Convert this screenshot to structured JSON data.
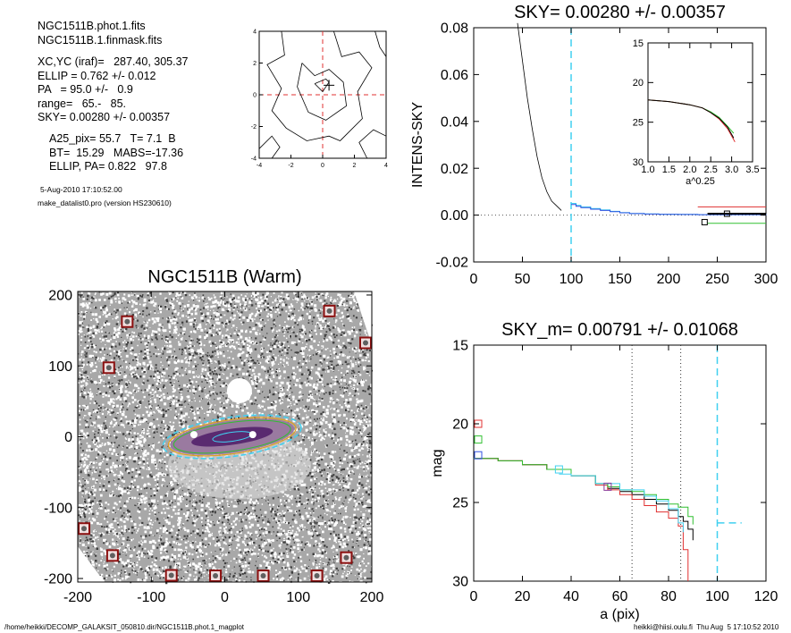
{
  "header": {
    "file1": "NGC1511B.phot.1.fits",
    "file2": "NGC1511B.1.finmask.fits",
    "xcyc": "XC,YC (iraf)=   287.40, 305.37",
    "ellip": "ELLIP = 0.762 +/- 0.012",
    "pa": "PA   = 95.0 +/-   0.9",
    "range": "range=   65.-   85.",
    "sky": "SKY= 0.00280 +/- 0.00357",
    "a25": "A25_pix= 55.7   T= 7.1  B",
    "bt": "BT=  15.29   MABS=-17.36",
    "ellip_pa": "ELLIP, PA= 0.822   97.8",
    "date": "5-Aug-2010 17:10:52.00",
    "prog": "make_datalist0.pro (version HS230610)"
  },
  "footer": {
    "path": "/home/heikki/DECOMP_GALAKSIT_050810.dir/NGC1511B.phot.1_magplot",
    "user": "heikki@hiisi.oulu.fi  Thu Aug  5 17:10:52 2010"
  },
  "colors": {
    "cyan": "#40d0f0",
    "red": "#e03030",
    "green": "#30c030",
    "blue": "#3050e0",
    "orange": "#e0a020",
    "darkred": "#8b1010"
  },
  "chart_data": [
    {
      "id": "contour",
      "type": "line",
      "title": "",
      "xlim": [
        -4,
        4
      ],
      "ylim": [
        -4,
        4
      ],
      "xticks": [
        -4,
        -2,
        0,
        2,
        4
      ],
      "yticks": [
        -4,
        -2,
        0,
        2,
        4
      ],
      "series": [
        {
          "points": [
            [
              -2.6,
              4
            ],
            [
              -2.4,
              2.5
            ],
            [
              -3.5,
              1.9
            ],
            [
              -2.6,
              0.4
            ],
            [
              -3.2,
              -1
            ],
            [
              -2.3,
              -2.1
            ],
            [
              -1,
              -2.9
            ],
            [
              0.4,
              -2.6
            ],
            [
              1.1,
              -2.9
            ],
            [
              2.5,
              -1.5
            ],
            [
              2.2,
              0.2
            ],
            [
              3.1,
              1.7
            ],
            [
              2.3,
              2.7
            ],
            [
              1.2,
              2.4
            ],
            [
              0.7,
              4
            ]
          ]
        },
        {
          "points": [
            [
              -1.3,
              2
            ],
            [
              -1.6,
              0.5
            ],
            [
              -0.9,
              -1.1
            ],
            [
              0.2,
              -1.6
            ],
            [
              1.5,
              -0.7
            ],
            [
              1.3,
              0.8
            ],
            [
              0.4,
              1.6
            ],
            [
              -0.5,
              1.2
            ],
            [
              -1.3,
              2
            ]
          ]
        },
        {
          "points": [
            [
              -0.5,
              0.7
            ],
            [
              0,
              0.2
            ],
            [
              0.4,
              0.8
            ],
            [
              0.2,
              1
            ],
            [
              -0.5,
              0.7
            ]
          ]
        },
        {
          "points": [
            [
              2.8,
              -4
            ],
            [
              2.3,
              -3
            ],
            [
              3.2,
              -2.2
            ],
            [
              4,
              -2.6
            ]
          ]
        },
        {
          "points": [
            [
              -4,
              -3.4
            ],
            [
              -3.2,
              -2.6
            ],
            [
              -2.7,
              -3.3
            ],
            [
              -3.2,
              -4
            ]
          ]
        },
        {
          "points": [
            [
              3.3,
              4
            ],
            [
              3.6,
              3
            ],
            [
              4,
              2.4
            ]
          ]
        }
      ]
    },
    {
      "id": "sky",
      "type": "line",
      "title": "SKY= 0.00280 +/- 0.00357",
      "xlabel": "",
      "ylabel": "INTENS-SKY",
      "xlim": [
        0,
        300
      ],
      "ylim": [
        -0.02,
        0.08
      ],
      "xticks": [
        0,
        50,
        100,
        150,
        200,
        250,
        300
      ],
      "yticks": [
        "-0.02",
        "0.00",
        "0.02",
        "0.04",
        "0.06",
        "0.08"
      ],
      "vline": 100,
      "profile": [
        [
          45,
          0.082
        ],
        [
          50,
          0.066
        ],
        [
          55,
          0.05
        ],
        [
          60,
          0.037
        ],
        [
          65,
          0.025
        ],
        [
          70,
          0.016
        ],
        [
          75,
          0.01
        ],
        [
          80,
          0.006
        ],
        [
          85,
          0.004
        ],
        [
          90,
          0.002
        ]
      ],
      "step": [
        [
          100,
          0.005
        ],
        [
          105,
          0.0042
        ],
        [
          110,
          0.0035
        ],
        [
          120,
          0.0028
        ],
        [
          130,
          0.0022
        ],
        [
          140,
          0.0016
        ],
        [
          150,
          0.0011
        ],
        [
          160,
          0.0007
        ],
        [
          175,
          0.0005
        ],
        [
          190,
          0.0004
        ],
        [
          210,
          0.0003
        ],
        [
          230,
          0.0002
        ],
        [
          300,
          0
        ]
      ],
      "lines": {
        "red": 0.0035,
        "black": 0.0006,
        "green": -0.0035
      },
      "markers": [
        [
          260,
          0.0006
        ],
        [
          237,
          -0.003
        ]
      ]
    },
    {
      "id": "inset",
      "type": "line",
      "title": "",
      "xlabel": "a^0.25",
      "ylabel": "",
      "xlim": [
        1.0,
        3.5
      ],
      "ylim": [
        30,
        15
      ],
      "xticks": [
        "1.0",
        "1.5",
        "2.0",
        "2.5",
        "3.0",
        "3.5"
      ],
      "yticks": [
        "15",
        "20",
        "25",
        "30"
      ],
      "series": [
        {
          "name": "",
          "color": "green",
          "points": [
            [
              1.0,
              22.2
            ],
            [
              1.5,
              22.4
            ],
            [
              2.0,
              22.8
            ],
            [
              2.3,
              23.2
            ],
            [
              2.5,
              23.7
            ],
            [
              2.7,
              24.4
            ],
            [
              2.9,
              25.5
            ],
            [
              3.05,
              26.4
            ]
          ]
        },
        {
          "name": "",
          "color": "red",
          "points": [
            [
              1.0,
              22.2
            ],
            [
              1.5,
              22.4
            ],
            [
              2.0,
              22.8
            ],
            [
              2.3,
              23.2
            ],
            [
              2.5,
              23.8
            ],
            [
              2.7,
              24.6
            ],
            [
              2.9,
              25.8
            ],
            [
              3.08,
              27.5
            ]
          ]
        },
        {
          "name": "",
          "color": "black",
          "points": [
            [
              1.0,
              22.2
            ],
            [
              1.5,
              22.4
            ],
            [
              2.0,
              22.8
            ],
            [
              2.3,
              23.2
            ],
            [
              2.5,
              23.8
            ],
            [
              2.7,
              24.5
            ],
            [
              2.9,
              25.6
            ],
            [
              3.05,
              27.0
            ]
          ]
        }
      ]
    },
    {
      "id": "image",
      "type": "scatter",
      "title": "NGC1511B (Warm)",
      "xlim": [
        -200,
        200
      ],
      "ylim": [
        -205,
        205
      ],
      "xticks": [
        -200,
        -100,
        0,
        100,
        200
      ],
      "yticks": [
        -200,
        -100,
        0,
        100,
        200
      ],
      "masks": [
        [
          -140,
          170
        ],
        [
          -165,
          105
        ],
        [
          135,
          185
        ],
        [
          198,
          140
        ],
        [
          -200,
          -122
        ],
        [
          -160,
          -160
        ],
        [
          -80,
          -188
        ],
        [
          -20,
          -200
        ],
        [
          45,
          -202
        ],
        [
          118,
          -190
        ],
        [
          158,
          -163
        ]
      ]
    },
    {
      "id": "mag",
      "type": "line",
      "title": "SKY_m=  0.00791 +/- 0.01068",
      "xlabel": "a (pix)",
      "ylabel": "mag",
      "xlim": [
        0,
        120
      ],
      "ylim": [
        30,
        15
      ],
      "xticks": [
        0,
        20,
        40,
        60,
        80,
        100,
        120
      ],
      "yticks": [
        15,
        20,
        25,
        30
      ],
      "vlines_dotted": [
        65,
        85
      ],
      "vline_dashed": 100,
      "hline_dashed": {
        "y": 26.3,
        "x0": 100,
        "x1": 110
      },
      "series": [
        {
          "name": "",
          "color": "black",
          "points": [
            [
              0,
              22.2
            ],
            [
              10,
              22.35
            ],
            [
              20,
              22.6
            ],
            [
              30,
              22.9
            ],
            [
              40,
              23.3
            ],
            [
              50,
              23.8
            ],
            [
              55,
              24.1
            ],
            [
              60,
              24.3
            ],
            [
              65,
              24.5
            ],
            [
              70,
              24.8
            ],
            [
              75,
              25.1
            ],
            [
              80,
              25.5
            ],
            [
              84,
              25.9
            ],
            [
              86,
              26.2
            ],
            [
              88,
              26.7
            ],
            [
              90,
              27.4
            ]
          ]
        },
        {
          "name": "",
          "color": "red",
          "points": [
            [
              0,
              22.2
            ],
            [
              10,
              22.35
            ],
            [
              20,
              22.6
            ],
            [
              30,
              22.9
            ],
            [
              40,
              23.3
            ],
            [
              50,
              23.9
            ],
            [
              55,
              24.2
            ],
            [
              60,
              24.5
            ],
            [
              65,
              24.8
            ],
            [
              70,
              25.2
            ],
            [
              75,
              25.6
            ],
            [
              80,
              26.0
            ],
            [
              84,
              26.5
            ],
            [
              86,
              28
            ],
            [
              88,
              30
            ]
          ]
        },
        {
          "name": "",
          "color": "green",
          "points": [
            [
              0,
              22.2
            ],
            [
              10,
              22.35
            ],
            [
              20,
              22.6
            ],
            [
              30,
              22.9
            ],
            [
              40,
              23.3
            ],
            [
              50,
              23.8
            ],
            [
              55,
              24.0
            ],
            [
              60,
              24.2
            ],
            [
              65,
              24.3
            ],
            [
              70,
              24.5
            ],
            [
              75,
              24.8
            ],
            [
              80,
              25.1
            ],
            [
              84,
              25.3
            ],
            [
              88,
              25.9
            ],
            [
              90,
              26.4
            ]
          ]
        },
        {
          "name": "",
          "color": "cyan",
          "points": [
            [
              35,
              23.2
            ],
            [
              40,
              23.3
            ],
            [
              50,
              23.8
            ],
            [
              60,
              24.2
            ],
            [
              70,
              24.6
            ],
            [
              75,
              24.9
            ],
            [
              80,
              25.4
            ],
            [
              84,
              26.3
            ],
            [
              86,
              26.9
            ]
          ]
        }
      ],
      "markers": [
        {
          "color": "red",
          "x": 0,
          "y": 20.0
        },
        {
          "color": "green",
          "x": 0,
          "y": 21.0
        },
        {
          "color": "blue",
          "x": 0,
          "y": 22.0
        },
        {
          "color": "cyan",
          "x": 35,
          "y": 22.9
        },
        {
          "color": "purple",
          "x": 55,
          "y": 24.0
        }
      ]
    }
  ]
}
